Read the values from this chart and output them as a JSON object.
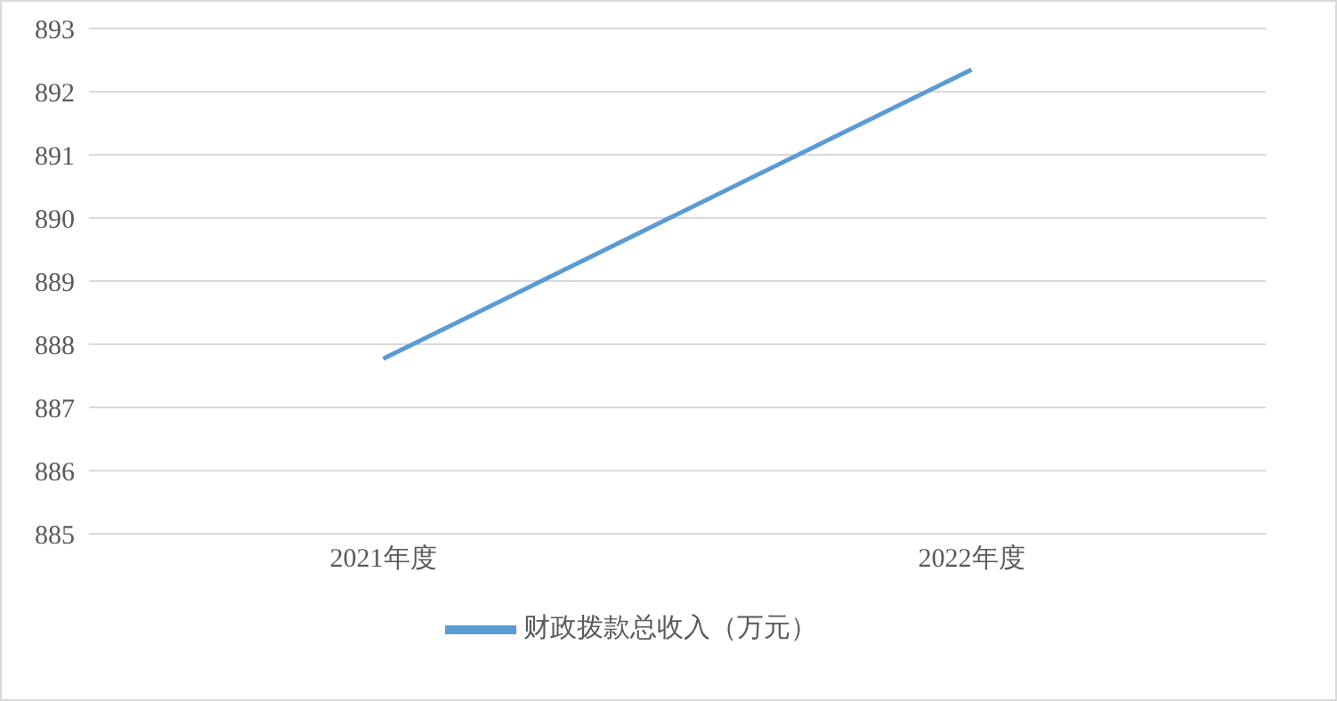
{
  "chart_data": {
    "type": "line",
    "categories": [
      "2021年度",
      "2022年度"
    ],
    "series": [
      {
        "name": "财政拨款总收入（万元）",
        "color": "#5b9bd5",
        "values": [
          887.77,
          892.35
        ]
      }
    ],
    "ylim": [
      885,
      893
    ],
    "yticks": [
      885,
      886,
      887,
      888,
      889,
      890,
      891,
      892,
      893
    ],
    "grid": "y",
    "legend": "bottom",
    "marker": "none",
    "line_style": "solid"
  }
}
